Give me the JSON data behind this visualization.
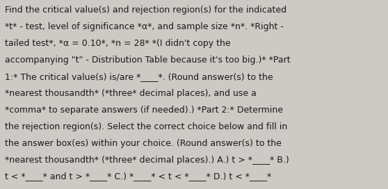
{
  "background_color": "#cccac5",
  "text_color": "#1a1a1a",
  "font_family": "DejaVu Sans",
  "font_size": 9.0,
  "figsize": [
    5.58,
    2.72
  ],
  "dpi": 100,
  "lines": [
    "Find the critical value(s) and rejection region(s) for the indicated",
    "*t* - test, level of significance *α*, and sample size *n*. *Right -",
    "tailed test*, *α = 0.10*, *n = 28* *(I didn't copy the",
    "accompanying \"t\" - Distribution Table because it's too big.)* *Part",
    "1:* The critical value(s) is/are *____*. (Round answer(s) to the",
    "*nearest thousandth* (*three* decimal places), and use a",
    "*comma* to separate answers (if needed).) *Part 2:* Determine",
    "the rejection region(s). Select the correct choice below and fill in",
    "the answer box(es) within your choice. (Round answer(s) to the",
    "*nearest thousandth* (*three* decimal places).) A.) t > *____* B.)",
    "t < *____* and t > *____* C.) *____* < t < *____* D.) t < *____*"
  ]
}
